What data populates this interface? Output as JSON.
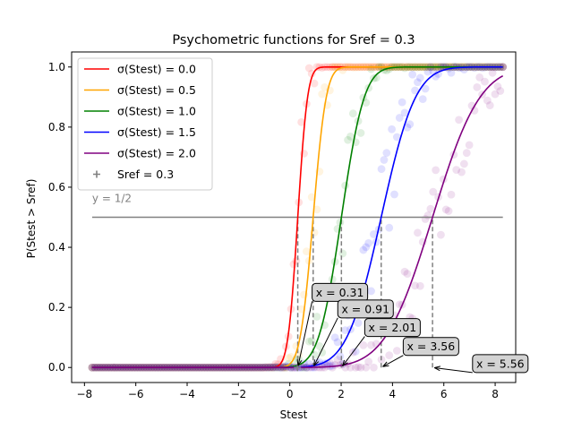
{
  "chart_data": {
    "type": "line",
    "title": "Psychometric functions for Sref = 0.3",
    "xlabel": "Stest",
    "ylabel": "P(Stest > Sref)",
    "xlim": [
      -8.5,
      8.8
    ],
    "ylim": [
      -0.05,
      1.05
    ],
    "xticks": [
      -8,
      -6,
      -4,
      -2,
      0,
      2,
      4,
      6,
      8
    ],
    "yticks": [
      0.0,
      0.2,
      0.4,
      0.6,
      0.8,
      1.0
    ],
    "grid": false,
    "legend_position": "top-left",
    "reference_line": {
      "y": 0.5,
      "x_range": [
        -7.7,
        8.3
      ],
      "label": "y = 1/2",
      "color": "#808080"
    },
    "sref_marker": {
      "name": "Sref = 0.3",
      "x": 0.3,
      "y": 0.0,
      "color": "#808080"
    },
    "x_range": [
      -7.7,
      8.3
    ],
    "series": [
      {
        "name": "σ(Stest) = 0.0",
        "color": "#ff0000",
        "threshold": 0.31,
        "slope": 0.3
      },
      {
        "name": "σ(Stest) = 0.5",
        "color": "#ffa500",
        "threshold": 0.91,
        "slope": 0.4
      },
      {
        "name": "σ(Stest) = 1.0",
        "color": "#008000",
        "threshold": 2.01,
        "slope": 0.7
      },
      {
        "name": "σ(Stest) = 1.5",
        "color": "#0000ff",
        "threshold": 3.56,
        "slope": 1.05
      },
      {
        "name": "σ(Stest) = 2.0",
        "color": "#800080",
        "threshold": 5.56,
        "slope": 1.45
      }
    ],
    "annotations": [
      {
        "text": "x = 0.31",
        "x": 0.31,
        "y": 0.0,
        "label_x": 1.95,
        "label_y": 0.25
      },
      {
        "text": "x = 0.91",
        "x": 0.91,
        "y": 0.0,
        "label_x": 2.95,
        "label_y": 0.195
      },
      {
        "text": "x = 2.01",
        "x": 2.01,
        "y": 0.0,
        "label_x": 4.0,
        "label_y": 0.133
      },
      {
        "text": "x = 3.56",
        "x": 3.56,
        "y": 0.0,
        "label_x": 5.5,
        "label_y": 0.07
      },
      {
        "text": "x = 5.56",
        "x": 5.56,
        "y": 0.0,
        "label_x": 8.2,
        "label_y": 0.013
      }
    ]
  }
}
